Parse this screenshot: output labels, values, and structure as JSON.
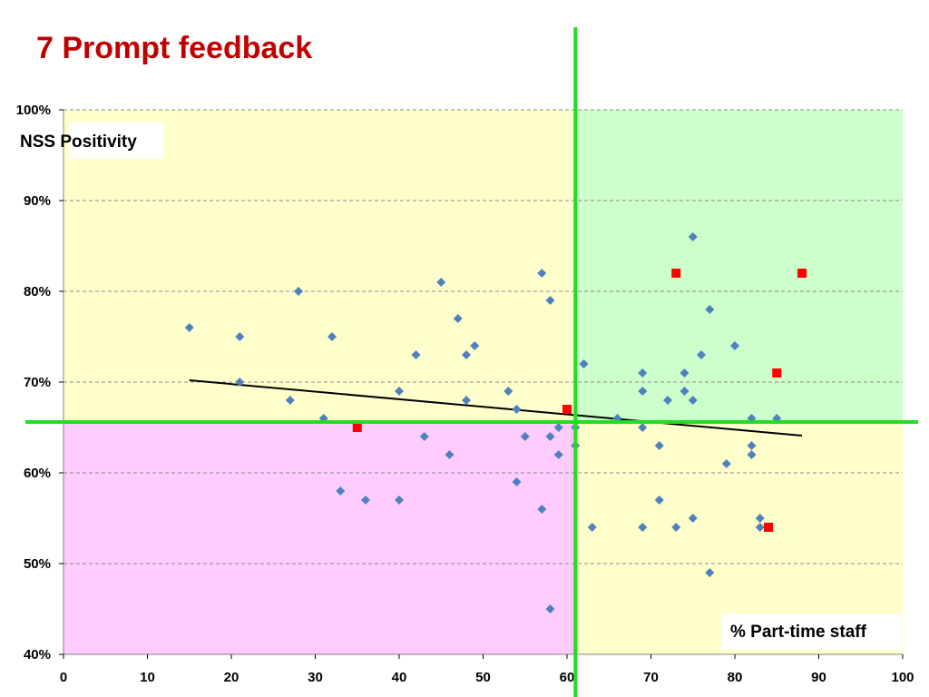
{
  "slide": {
    "title": "7 Prompt feedback"
  },
  "colors": {
    "quadrant_top_left": "#ffffcc",
    "quadrant_top_right": "#ccffcc",
    "quadrant_bottom_left": "#ffccff",
    "quadrant_bottom_right": "#ffffcc",
    "divider": "#22dd22",
    "trendline": "#000000",
    "series_blue": "#4f81bd",
    "series_red": "#ff0000",
    "gridline": "#888888"
  },
  "chart_data": {
    "type": "scatter",
    "title": "",
    "xlabel": "% Part-time staff",
    "ylabel": "NSS Positivity",
    "xlim": [
      0,
      100
    ],
    "ylim": [
      40,
      100
    ],
    "x_ticks": [
      "0",
      "10",
      "20",
      "30",
      "40",
      "50",
      "60",
      "70",
      "80",
      "90",
      "100"
    ],
    "y_ticks": [
      "40%",
      "50%",
      "60%",
      "70%",
      "80%",
      "90%",
      "100%"
    ],
    "grid": "horizontal dashed",
    "quadrant_dividers": {
      "x": 61,
      "y": 65.6
    },
    "trendline": {
      "x": [
        15,
        88
      ],
      "y": [
        70.2,
        64.1
      ]
    },
    "series": [
      {
        "marker": "diamond",
        "color": "#4f81bd",
        "points": [
          [
            15,
            76
          ],
          [
            21,
            75
          ],
          [
            21,
            70
          ],
          [
            27,
            68
          ],
          [
            28,
            80
          ],
          [
            31,
            66
          ],
          [
            32,
            75
          ],
          [
            33,
            58
          ],
          [
            36,
            57
          ],
          [
            40,
            69
          ],
          [
            40,
            57
          ],
          [
            42,
            73
          ],
          [
            43,
            64
          ],
          [
            45,
            81
          ],
          [
            46,
            62
          ],
          [
            47,
            77
          ],
          [
            48,
            73
          ],
          [
            48,
            68
          ],
          [
            49,
            74
          ],
          [
            53,
            69
          ],
          [
            54,
            67
          ],
          [
            54,
            59
          ],
          [
            55,
            64
          ],
          [
            57,
            82
          ],
          [
            57,
            56
          ],
          [
            58,
            79
          ],
          [
            58,
            64
          ],
          [
            58,
            45
          ],
          [
            59,
            65
          ],
          [
            59,
            62
          ],
          [
            61,
            65
          ],
          [
            61,
            63
          ],
          [
            62,
            72
          ],
          [
            63,
            54
          ],
          [
            66,
            66
          ],
          [
            69,
            71
          ],
          [
            69,
            69
          ],
          [
            69,
            65
          ],
          [
            69,
            54
          ],
          [
            71,
            63
          ],
          [
            71,
            57
          ],
          [
            72,
            68
          ],
          [
            73,
            54
          ],
          [
            74,
            71
          ],
          [
            74,
            69
          ],
          [
            75,
            86
          ],
          [
            75,
            68
          ],
          [
            75,
            55
          ],
          [
            76,
            73
          ],
          [
            77,
            78
          ],
          [
            77,
            49
          ],
          [
            79,
            61
          ],
          [
            80,
            74
          ],
          [
            82,
            66
          ],
          [
            82,
            63
          ],
          [
            82,
            62
          ],
          [
            83,
            55
          ],
          [
            83,
            54
          ],
          [
            85,
            66
          ]
        ]
      },
      {
        "marker": "square",
        "color": "#ff0000",
        "points": [
          [
            35,
            65
          ],
          [
            60,
            67
          ],
          [
            73,
            82
          ],
          [
            84,
            54
          ],
          [
            85,
            71
          ],
          [
            88,
            82
          ]
        ]
      }
    ]
  }
}
